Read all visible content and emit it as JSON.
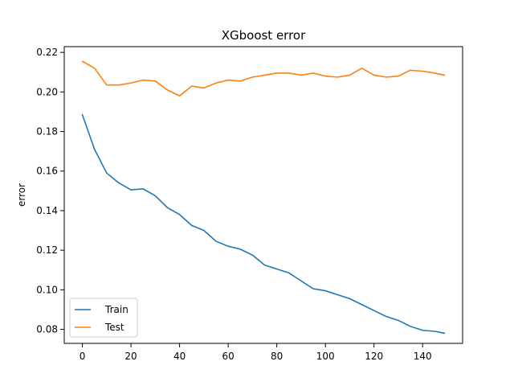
{
  "chart_data": {
    "type": "line",
    "title": "XGboost error",
    "xlabel": "",
    "ylabel": "error",
    "xlim": [
      -7.45,
      156.45
    ],
    "ylim": [
      0.0729,
      0.2229
    ],
    "xticks": [
      0,
      20,
      40,
      60,
      80,
      100,
      120,
      140
    ],
    "yticks": [
      0.08,
      0.1,
      0.12,
      0.14,
      0.16,
      0.18,
      0.2,
      0.22
    ],
    "ytick_labels": [
      "0.08",
      "0.10",
      "0.12",
      "0.14",
      "0.16",
      "0.18",
      "0.20",
      "0.22"
    ],
    "xtick_labels": [
      "0",
      "20",
      "40",
      "60",
      "80",
      "100",
      "120",
      "140"
    ],
    "grid": false,
    "legend_position": "lower-left",
    "x": [
      0,
      5,
      10,
      15,
      20,
      25,
      30,
      35,
      40,
      45,
      50,
      55,
      60,
      65,
      70,
      75,
      80,
      85,
      90,
      95,
      100,
      105,
      110,
      115,
      120,
      125,
      130,
      135,
      140,
      145,
      149
    ],
    "series": [
      {
        "name": "Train",
        "color": "#1f77b4",
        "values": [
          0.1885,
          0.171,
          0.159,
          0.154,
          0.1505,
          0.151,
          0.1475,
          0.1415,
          0.138,
          0.1325,
          0.13,
          0.1245,
          0.122,
          0.1205,
          0.1175,
          0.1125,
          0.1105,
          0.1085,
          0.1045,
          0.1005,
          0.0995,
          0.0975,
          0.0955,
          0.0925,
          0.0895,
          0.0865,
          0.0845,
          0.0815,
          0.0795,
          0.079,
          0.078
        ]
      },
      {
        "name": "Test",
        "color": "#ff7f0e",
        "values": [
          0.2155,
          0.212,
          0.2035,
          0.2035,
          0.2045,
          0.206,
          0.2055,
          0.201,
          0.198,
          0.203,
          0.202,
          0.2045,
          0.206,
          0.2055,
          0.2075,
          0.2085,
          0.2095,
          0.2095,
          0.2085,
          0.2095,
          0.208,
          0.2075,
          0.2085,
          0.212,
          0.2085,
          0.2075,
          0.208,
          0.211,
          0.2105,
          0.2095,
          0.2085
        ]
      }
    ]
  }
}
